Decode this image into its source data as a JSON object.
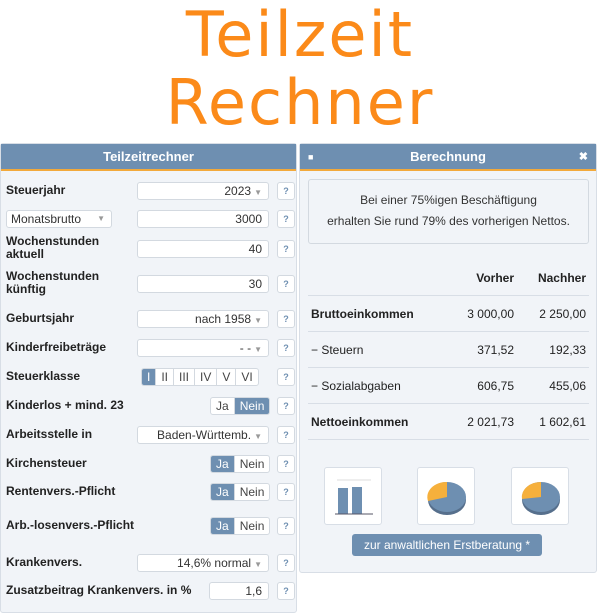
{
  "title": {
    "line1": "Teilzeit",
    "line2": "Rechner"
  },
  "left": {
    "header": "Teilzeitrechner",
    "help": "?",
    "rows": [
      {
        "label": "Steuerjahr",
        "value": "2023"
      },
      {
        "label": "Monatsbrutto",
        "value": "3000"
      },
      {
        "label": "Wochenstunden aktuell",
        "value": "40"
      },
      {
        "label": "Wochenstunden künftig",
        "value": "30"
      },
      {
        "label": "Geburtsjahr",
        "value": "nach 1958"
      },
      {
        "label": "Kinderfreibeträge",
        "value": "- -"
      },
      {
        "label": "Steuerklasse",
        "options": [
          "I",
          "II",
          "III",
          "IV",
          "V",
          "VI"
        ],
        "selected": "I"
      },
      {
        "label": "Kinderlos + mind. 23",
        "yes": "Ja",
        "no": "Nein",
        "selected": "Nein"
      },
      {
        "label": "Arbeitsstelle in",
        "value": "Baden-Württemb."
      },
      {
        "label": "Kirchensteuer",
        "yes": "Ja",
        "no": "Nein",
        "selected": "Ja"
      },
      {
        "label": "Rentenvers.-Pflicht",
        "yes": "Ja",
        "no": "Nein",
        "selected": "Ja"
      },
      {
        "label": "Arb.-losenvers.-Pflicht",
        "yes": "Ja",
        "no": "Nein",
        "selected": "Ja"
      },
      {
        "label": "Krankenvers.",
        "value": "14,6% normal"
      },
      {
        "label": "Zusatzbeitrag Krankenvers. in %",
        "value": "1,6"
      }
    ]
  },
  "right": {
    "header": "Berechnung",
    "close": "✖",
    "message": {
      "line1": "Bei einer 75%igen Beschäftigung",
      "line2": "erhalten Sie rund 79% des vorherigen Nettos."
    },
    "columns": [
      "Vorher",
      "Nachher"
    ],
    "rows": [
      {
        "label": "Bruttoeinkommen",
        "before": "3 000,00",
        "after": "2 250,00",
        "bold": true
      },
      {
        "label": "− Steuern",
        "before": "371,52",
        "after": "192,33"
      },
      {
        "label": "− Sozialabgaben",
        "before": "606,75",
        "after": "455,06"
      },
      {
        "label": "Nettoeinkommen",
        "before": "2 021,73",
        "after": "1 602,61",
        "bold": true
      }
    ],
    "cta": "zur anwaltlichen Erstberatung *"
  },
  "colors": {
    "accent": "#fb8a19",
    "primary": "#6e8fb1",
    "pie_slice": "#f6b03c"
  }
}
